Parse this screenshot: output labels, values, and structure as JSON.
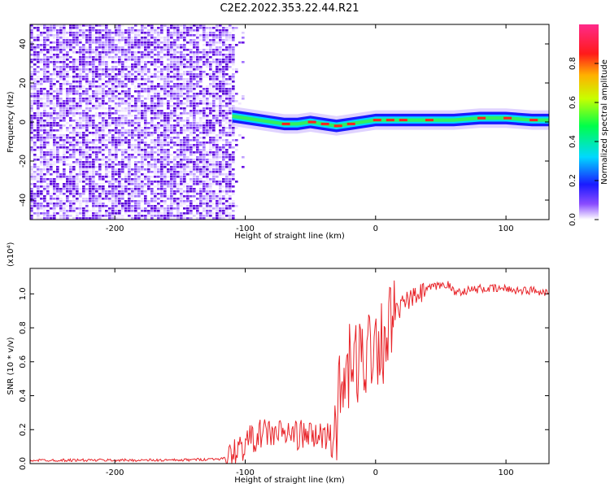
{
  "title": "C2E2.2022.353.22.44.R21",
  "colors": {
    "snr_line": "#e8252a",
    "noise": "#6a14e6",
    "axis": "#000000"
  },
  "chart_data": [
    {
      "type": "heatmap",
      "xlabel": "Height of straight line (km)",
      "ylabel": "Frequency (Hz)",
      "xlim": [
        -265,
        133
      ],
      "ylim": [
        -50,
        50
      ],
      "xticks": [
        -200,
        -100,
        0,
        100
      ],
      "yticks": [
        -40,
        -20,
        0,
        20,
        40
      ],
      "noise_region_x": [
        -265,
        -110
      ],
      "signal_trace": {
        "x": [
          -110,
          -100,
          -90,
          -80,
          -70,
          -60,
          -50,
          -40,
          -30,
          -20,
          -10,
          0,
          10,
          20,
          40,
          60,
          80,
          100,
          120,
          133
        ],
        "freq_hz": [
          3,
          2,
          1,
          0,
          -1,
          -1,
          0,
          -1,
          -2,
          -1,
          0,
          1,
          1,
          1,
          1,
          1,
          2,
          2,
          1,
          1
        ]
      },
      "colorbar": {
        "label": "Normalized spectral amplitude",
        "ticks": [
          "0.0",
          "0.2",
          "0.4",
          "0.6",
          "0.8"
        ],
        "range": [
          0,
          1
        ],
        "colormap": "rainbow"
      }
    },
    {
      "type": "line",
      "xlabel": "Height of straight line (km)",
      "ylabel": "SNR (10 * v/v)",
      "y_multiplier": "(x10⁴)",
      "xlim": [
        -265,
        133
      ],
      "ylim": [
        0,
        1.15
      ],
      "xticks": [
        -200,
        -100,
        0,
        100
      ],
      "yticks": [
        "0.0",
        "0.2",
        "0.4",
        "0.6",
        "0.8",
        "1.0"
      ],
      "series": [
        {
          "x": [
            -265,
            -200,
            -150,
            -115,
            -105,
            -95,
            -85,
            -75,
            -60,
            -45,
            -35,
            -30,
            -25,
            -20,
            -15,
            -10,
            -5,
            0,
            5,
            10,
            15,
            20,
            25,
            30,
            35,
            40,
            50,
            55,
            60,
            70,
            80,
            90,
            100,
            110,
            120,
            133
          ],
          "values": [
            0.02,
            0.02,
            0.02,
            0.03,
            0.08,
            0.15,
            0.18,
            0.18,
            0.17,
            0.16,
            0.17,
            0.28,
            0.45,
            0.55,
            0.58,
            0.62,
            0.7,
            0.75,
            0.72,
            0.8,
            0.88,
            0.93,
            0.96,
            0.98,
            1.0,
            1.03,
            1.05,
            1.06,
            1.01,
            1.02,
            1.03,
            1.03,
            1.03,
            1.02,
            1.02,
            1.01
          ]
        }
      ]
    }
  ]
}
